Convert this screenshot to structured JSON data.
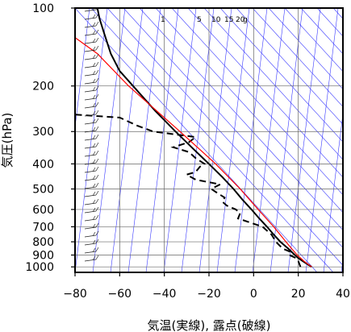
{
  "chart_data": {
    "type": "line",
    "subtype": "skew-T log-P thermodynamic diagram",
    "xlabel": "気温(実線), 露点(破線)",
    "ylabel": "気圧(hPa)",
    "xlim": [
      -80,
      40
    ],
    "ylim": [
      1050,
      100
    ],
    "y_scale": "log",
    "x_ticks": [
      -80,
      -60,
      -40,
      -20,
      0,
      20,
      40
    ],
    "x_tick_labels": [
      "−80",
      "−60",
      "−40",
      "−20",
      "0",
      "20",
      "40"
    ],
    "y_ticks": [
      100,
      200,
      300,
      400,
      500,
      600,
      700,
      800,
      900,
      1000
    ],
    "y_tick_labels": [
      "100",
      "200",
      "300",
      "400",
      "500",
      "600",
      "700",
      "800",
      "900",
      "1000"
    ],
    "mixing_ratio_labels": [
      "1",
      "5",
      "10",
      "15",
      "20",
      "g"
    ],
    "grid": true,
    "series": [
      {
        "name": "",
        "role": "temperature",
        "style": "solid",
        "color": "#000000",
        "points": [
          {
            "p": 1000,
            "t": 26
          },
          {
            "p": 975,
            "t": 24
          },
          {
            "p": 950,
            "t": 22
          },
          {
            "p": 925,
            "t": 20
          },
          {
            "p": 900,
            "t": 18.5
          },
          {
            "p": 850,
            "t": 15.5
          },
          {
            "p": 800,
            "t": 12
          },
          {
            "p": 750,
            "t": 9
          },
          {
            "p": 700,
            "t": 6
          },
          {
            "p": 650,
            "t": 2.5
          },
          {
            "p": 600,
            "t": -1
          },
          {
            "p": 550,
            "t": -5
          },
          {
            "p": 500,
            "t": -9
          },
          {
            "p": 450,
            "t": -14
          },
          {
            "p": 400,
            "t": -20
          },
          {
            "p": 350,
            "t": -27
          },
          {
            "p": 300,
            "t": -35
          },
          {
            "p": 250,
            "t": -44
          },
          {
            "p": 200,
            "t": -54
          },
          {
            "p": 175,
            "t": -60
          },
          {
            "p": 150,
            "t": -64
          },
          {
            "p": 125,
            "t": -67
          },
          {
            "p": 110,
            "t": -69
          },
          {
            "p": 100,
            "t": -70
          }
        ]
      },
      {
        "name": "",
        "role": "dewpoint",
        "style": "dashed",
        "color": "#000000",
        "points": [
          {
            "p": 1000,
            "t": 21
          },
          {
            "p": 975,
            "t": 20.5
          },
          {
            "p": 950,
            "t": 20
          },
          {
            "p": 925,
            "t": 19
          },
          {
            "p": 900,
            "t": 16
          },
          {
            "p": 875,
            "t": 16.5
          },
          {
            "p": 850,
            "t": 13
          },
          {
            "p": 800,
            "t": 10
          },
          {
            "p": 750,
            "t": 8
          },
          {
            "p": 700,
            "t": 4
          },
          {
            "p": 650,
            "t": -7
          },
          {
            "p": 620,
            "t": -6
          },
          {
            "p": 600,
            "t": -8
          },
          {
            "p": 580,
            "t": -12
          },
          {
            "p": 560,
            "t": -14
          },
          {
            "p": 540,
            "t": -13
          },
          {
            "p": 520,
            "t": -16
          },
          {
            "p": 500,
            "t": -19
          },
          {
            "p": 480,
            "t": -15
          },
          {
            "p": 460,
            "t": -26
          },
          {
            "p": 440,
            "t": -30
          },
          {
            "p": 430,
            "t": -26
          },
          {
            "p": 410,
            "t": -24
          },
          {
            "p": 400,
            "t": -22
          },
          {
            "p": 380,
            "t": -26
          },
          {
            "p": 360,
            "t": -29
          },
          {
            "p": 345,
            "t": -36
          },
          {
            "p": 330,
            "t": -29
          },
          {
            "p": 315,
            "t": -26
          },
          {
            "p": 300,
            "t": -45
          },
          {
            "p": 285,
            "t": -52
          },
          {
            "p": 265,
            "t": -60
          },
          {
            "p": 258,
            "t": -80
          }
        ]
      },
      {
        "name": "",
        "role": "parcel",
        "style": "solid",
        "color": "#ff0000",
        "points": [
          {
            "p": 1000,
            "t": 26
          },
          {
            "p": 950,
            "t": 22.5
          },
          {
            "p": 900,
            "t": 19.5
          },
          {
            "p": 850,
            "t": 17
          },
          {
            "p": 800,
            "t": 14.5
          },
          {
            "p": 700,
            "t": 9
          },
          {
            "p": 600,
            "t": 2
          },
          {
            "p": 500,
            "t": -6
          },
          {
            "p": 400,
            "t": -17
          },
          {
            "p": 300,
            "t": -33
          },
          {
            "p": 200,
            "t": -56
          },
          {
            "p": 150,
            "t": -70
          },
          {
            "p": 130,
            "t": -80
          }
        ]
      }
    ]
  }
}
